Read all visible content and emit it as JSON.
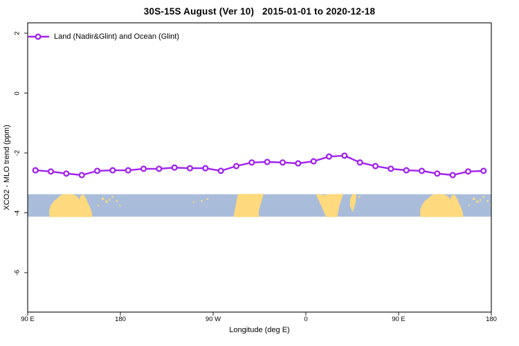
{
  "title": "30S-15S August (Ver 10)   2015-01-01 to 2020-12-18",
  "legend": {
    "label": "Land (Nadir&Glint) and Ocean (Glint)"
  },
  "axes": {
    "x_title": "Longitude (deg E)",
    "y_title": "XCO2 - MLO trend (ppm)"
  },
  "chart_data": {
    "type": "line",
    "title": "30S-15S August (Ver 10)   2015-01-01 to 2020-12-18",
    "xlabel": "Longitude (deg E)",
    "ylabel": "XCO2 - MLO trend (ppm)",
    "series_name": "Land (Nadir&Glint) and Ocean (Glint)",
    "xlim": [
      90,
      540
    ],
    "ylim": [
      -7.3,
      2.35
    ],
    "x_ticks": [
      {
        "lon": 90,
        "label": "90 E"
      },
      {
        "lon": 180,
        "label": "180"
      },
      {
        "lon": 270,
        "label": "90 W"
      },
      {
        "lon": 360,
        "label": "0"
      },
      {
        "lon": 450,
        "label": "90 E"
      },
      {
        "lon": 540,
        "label": "180"
      }
    ],
    "y_ticks": [
      2,
      0,
      -2,
      -4,
      -6
    ],
    "x": [
      97.5,
      112.5,
      127.5,
      142.5,
      157.5,
      172.5,
      187.5,
      202.5,
      217.5,
      232.5,
      247.5,
      262.5,
      277.5,
      292.5,
      307.5,
      322.5,
      337.5,
      352.5,
      367.5,
      382.5,
      397.5,
      412.5,
      427.5,
      442.5,
      457.5,
      472.5,
      487.5,
      502.5,
      517.5,
      532.5
    ],
    "values": [
      -2.58,
      -2.62,
      -2.69,
      -2.74,
      -2.6,
      -2.58,
      -2.58,
      -2.53,
      -2.53,
      -2.49,
      -2.51,
      -2.51,
      -2.6,
      -2.44,
      -2.32,
      -2.3,
      -2.32,
      -2.35,
      -2.28,
      -2.12,
      -2.09,
      -2.32,
      -2.44,
      -2.53,
      -2.58,
      -2.6,
      -2.69,
      -2.74,
      -2.62,
      -2.6
    ],
    "line_color": "#a020f0",
    "marker": "open-circle",
    "grid": false,
    "legend_position": "top-left-inside",
    "map_band": {
      "description": "land/ocean strip for latitude band 30S-15S",
      "y_top": -3.38,
      "y_bottom": -4.13,
      "ocean_color": "#a9bddb",
      "land_color": "#fed97d",
      "land_polygons": [
        {
          "name": "australia",
          "offsets": [
            0,
            360
          ],
          "points": [
            [
              111.5,
              1
            ],
            [
              111.2,
              0.72
            ],
            [
              113,
              0.48
            ],
            [
              116,
              0.3
            ],
            [
              119,
              0.2
            ],
            [
              121.5,
              0.08
            ],
            [
              124.5,
              0.02
            ],
            [
              133,
              0.02
            ],
            [
              136,
              0.06
            ],
            [
              138.5,
              0.14
            ],
            [
              140,
              0.28
            ],
            [
              141.5,
              0.1
            ],
            [
              143,
              0.03
            ],
            [
              144.5,
              0.06
            ],
            [
              146,
              0.17
            ],
            [
              147.5,
              0.32
            ],
            [
              149.5,
              0.52
            ],
            [
              151.5,
              0.75
            ],
            [
              152.5,
              1
            ]
          ]
        },
        {
          "name": "south-america",
          "offsets": [
            0
          ],
          "points": [
            [
              294.5,
              0
            ],
            [
              318.5,
              0
            ],
            [
              316,
              0.4
            ],
            [
              313.8,
              0.8
            ],
            [
              314.2,
              1
            ],
            [
              290.3,
              1
            ],
            [
              292,
              0.55
            ],
            [
              293.5,
              0.2
            ]
          ]
        },
        {
          "name": "africa",
          "offsets": [
            0
          ],
          "points": [
            [
              370.5,
              0
            ],
            [
              378,
              0.06
            ],
            [
              381,
              0.02
            ],
            [
              396,
              0
            ],
            [
              392.5,
              0.45
            ],
            [
              390.2,
              1
            ],
            [
              379.8,
              1
            ],
            [
              375.2,
              0.5
            ],
            [
              371.2,
              0.12
            ]
          ]
        },
        {
          "name": "madagascar",
          "offsets": [
            0
          ],
          "points": [
            [
              403.3,
              0.2
            ],
            [
              405.5,
              0
            ],
            [
              408.6,
              0.04
            ],
            [
              407.8,
              0.4
            ],
            [
              405.3,
              0.76
            ],
            [
              403.1,
              0.5
            ]
          ]
        }
      ],
      "island_dots": [
        {
          "lon": 158.5,
          "frac": 0.5,
          "r": 1.2,
          "offsets": [
            0,
            360
          ]
        },
        {
          "lon": 163,
          "frac": 0.2,
          "r": 1.8,
          "offsets": [
            0,
            360
          ]
        },
        {
          "lon": 166.5,
          "frac": 0.33,
          "r": 1.8,
          "offsets": [
            0,
            360
          ]
        },
        {
          "lon": 169.5,
          "frac": 0.25,
          "r": 1.3,
          "offsets": [
            0,
            360
          ]
        },
        {
          "lon": 172.5,
          "frac": 0.12,
          "r": 1.3,
          "offsets": [
            0,
            360
          ]
        },
        {
          "lon": 176.5,
          "frac": 0.3,
          "r": 1.3,
          "offsets": [
            0,
            360
          ]
        },
        {
          "lon": 179.5,
          "frac": 0.5,
          "r": 1.2,
          "offsets": [
            0,
            360
          ]
        },
        {
          "lon": 251,
          "frac": 0.35,
          "r": 1.2,
          "offsets": [
            0
          ]
        },
        {
          "lon": 259,
          "frac": 0.3,
          "r": 1.3,
          "offsets": [
            0
          ]
        },
        {
          "lon": 264.5,
          "frac": 0.22,
          "r": 1.3,
          "offsets": [
            0
          ]
        },
        {
          "lon": 412,
          "frac": 0.12,
          "r": 1.3,
          "offsets": [
            0
          ]
        }
      ]
    }
  }
}
